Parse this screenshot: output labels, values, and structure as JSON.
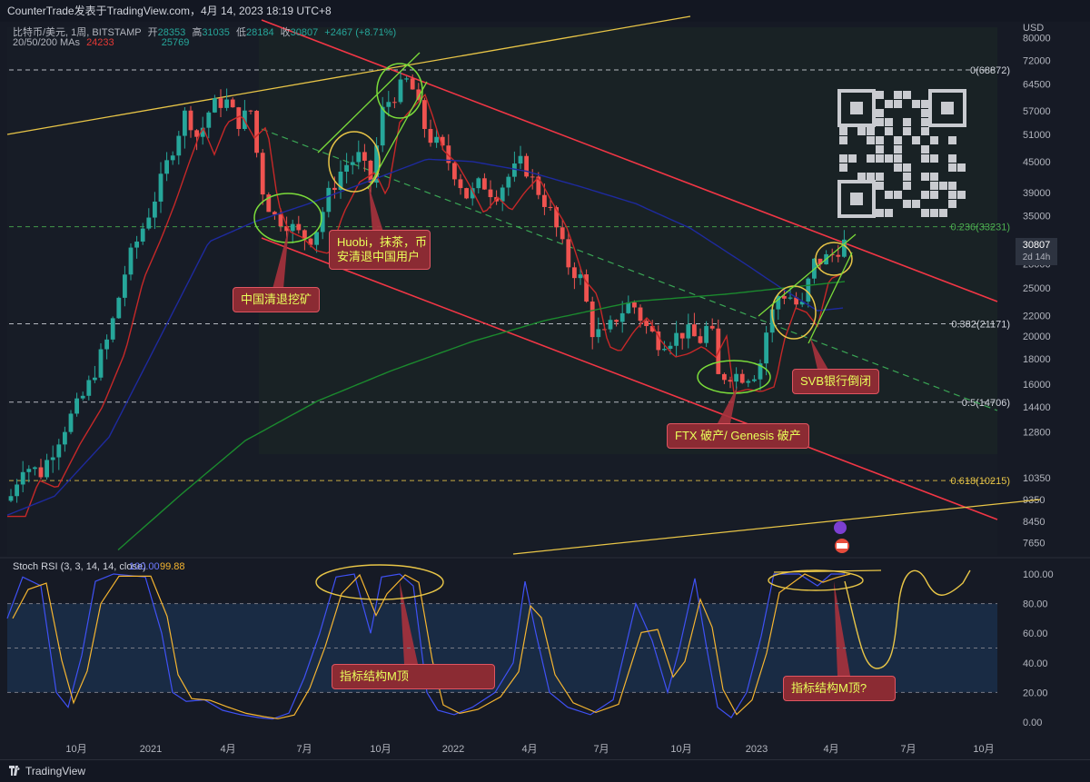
{
  "header": {
    "title": "CounterTrade发表于TradingView.com，4月 14, 2023 18:19 UTC+8"
  },
  "legend": {
    "symbol": "比特币/美元, 1周, BITSTAMP",
    "open_label": "开",
    "open": "28353",
    "high_label": "高",
    "high": "31035",
    "low_label": "低",
    "low": "28184",
    "close_label": "收",
    "close": "30807",
    "change": "+2467 (+8.71%)",
    "ma_label": "20/50/200 MAs",
    "ma20": "24233",
    "ma50": "",
    "ma200": "25769"
  },
  "price_axis": {
    "currency": "USD",
    "ticks": [
      "80000",
      "72000",
      "64500",
      "57000",
      "51000",
      "45000",
      "39000",
      "35000",
      "28000",
      "25000",
      "22000",
      "20000",
      "18000",
      "16000",
      "14400",
      "12800",
      "10350",
      "9350",
      "8450",
      "7650"
    ],
    "last_price": "30807",
    "last_time": "2d 14h"
  },
  "fib_levels": [
    {
      "label": "0(68872)",
      "color": "#d1d4dc"
    },
    {
      "label": "0.236(33231)",
      "color": "#4caf50"
    },
    {
      "label": "0.382(21171)",
      "color": "#d1d4dc"
    },
    {
      "label": "0.5(14706)",
      "color": "#d1d4dc"
    },
    {
      "label": "0.618(10215)",
      "color": "#e8c547"
    }
  ],
  "stoch": {
    "label": "Stoch RSI (3, 3, 14, 14, close)",
    "k": "100.00",
    "d": "99.88",
    "ticks": [
      "100.00",
      "80.00",
      "60.00",
      "40.00",
      "20.00",
      "0.00"
    ]
  },
  "time_axis": [
    "10月",
    "2021",
    "4月",
    "7月",
    "10月",
    "2022",
    "4月",
    "7月",
    "10月",
    "2023",
    "4月",
    "7月",
    "10月"
  ],
  "annotations": {
    "china_mining": "中国清退挖矿",
    "huobi_line1": "Huobi，抹茶，币",
    "huobi_line2": "安清退中国用户",
    "ftx": "FTX 破产/ Genesis 破产",
    "svb": "SVB银行倒闭",
    "m_top": "指标结构M顶",
    "m_top_q": "指标结构M顶?"
  },
  "footer": {
    "brand": "TradingView"
  },
  "colors": {
    "up": "#26a69a",
    "down": "#ef5350",
    "ma20": "#c62828",
    "ma50": "#1e2a9e",
    "ma200": "#1b8a2e",
    "k": "#3f51f5",
    "d": "#f5b530",
    "channel": "#f23645"
  },
  "chart_data": {
    "type": "candlestick",
    "title": "比特币/美元, 1周, BITSTAMP",
    "scale": "log",
    "ylim": [
      7200,
      84000
    ],
    "timeframe": "1W",
    "key_points": [
      {
        "t": "2020-08",
        "price": 9400
      },
      {
        "t": "2020-10",
        "price": 11500
      },
      {
        "t": "2021-01",
        "price": 38000
      },
      {
        "t": "2021-04",
        "price": 59000
      },
      {
        "t": "2021-07",
        "price": 31000
      },
      {
        "t": "2021-11",
        "price": 68872
      },
      {
        "t": "2022-04",
        "price": 40000
      },
      {
        "t": "2022-06",
        "price": 19000
      },
      {
        "t": "2022-11",
        "price": 16000
      },
      {
        "t": "2023-03",
        "price": 22000
      },
      {
        "t": "2023-04",
        "price": 30807
      }
    ],
    "fibonacci": [
      {
        "level": 0,
        "price": 68872
      },
      {
        "level": 0.236,
        "price": 33231
      },
      {
        "level": 0.382,
        "price": 21171
      },
      {
        "level": 0.5,
        "price": 14706
      },
      {
        "level": 0.618,
        "price": 10215
      }
    ],
    "moving_averages": [
      "MA20",
      "MA50",
      "MA200"
    ],
    "indicator": {
      "name": "Stoch RSI (3, 3, 14, 14, close)",
      "k": 100.0,
      "d": 99.88,
      "ylim": [
        0,
        100
      ],
      "bands": [
        20,
        80
      ]
    }
  }
}
